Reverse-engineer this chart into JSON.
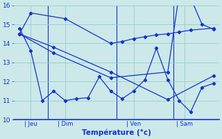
{
  "background_color": "#cce8e8",
  "grid_color": "#99cccc",
  "line_color": "#1133cc",
  "xlabel": "Température (°c)",
  "ylim": [
    10,
    16
  ],
  "yticks": [
    10,
    11,
    12,
    13,
    14,
    15,
    16
  ],
  "xlim": [
    0,
    18
  ],
  "xtick_positions": [
    1.5,
    4.5,
    10.5,
    15.0
  ],
  "xtick_labels": [
    "| Jeu",
    "| Dim",
    "| Ven",
    "| Sam"
  ],
  "vline_positions": [
    3,
    9,
    14
  ],
  "line1_x": [
    0.5,
    1.5,
    4.5,
    8.5,
    9.5,
    10.5,
    11.5,
    12.5,
    13.5,
    14.5,
    15.5,
    17.5
  ],
  "line1_y": [
    14.5,
    15.6,
    15.3,
    14.0,
    14.1,
    14.25,
    14.35,
    14.45,
    14.5,
    14.6,
    14.7,
    14.8
  ],
  "line2_x": [
    0.5,
    1.5,
    2.5,
    3.5,
    4.5,
    5.5,
    6.5,
    7.5,
    8.5,
    9.5,
    10.5,
    11.5,
    12.5,
    13.5,
    14.5,
    15.5,
    16.5,
    17.5
  ],
  "line2_y": [
    14.8,
    13.6,
    11.0,
    11.5,
    11.0,
    11.1,
    11.15,
    12.25,
    11.5,
    11.1,
    11.5,
    12.1,
    13.75,
    12.1,
    11.0,
    10.4,
    11.7,
    11.9
  ],
  "line3_x": [
    0.5,
    3.5,
    8.5,
    13.5,
    17.5
  ],
  "line3_y": [
    14.5,
    13.8,
    12.5,
    11.05,
    12.3
  ],
  "line4_x": [
    0.5,
    3.5,
    8.5,
    13.5,
    14.5,
    15.5,
    16.5,
    17.5
  ],
  "line4_y": [
    14.5,
    13.5,
    12.2,
    12.5,
    16.6,
    16.4,
    15.0,
    14.75
  ]
}
